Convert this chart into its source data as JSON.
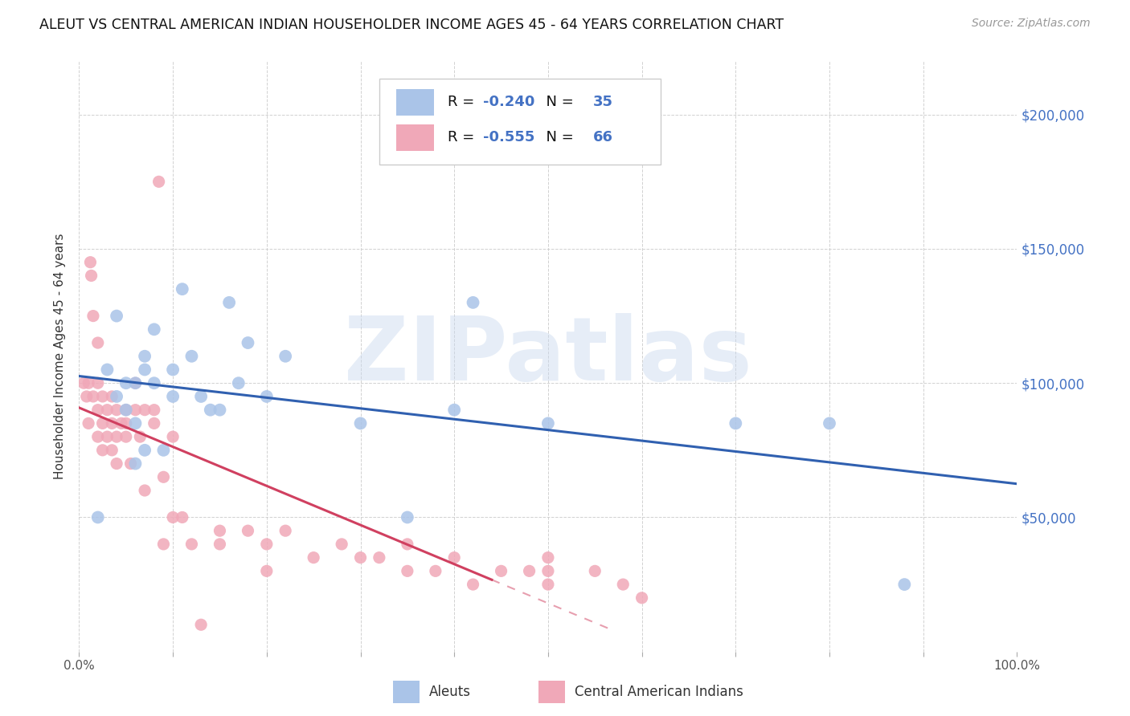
{
  "title": "ALEUT VS CENTRAL AMERICAN INDIAN HOUSEHOLDER INCOME AGES 45 - 64 YEARS CORRELATION CHART",
  "source": "Source: ZipAtlas.com",
  "ylabel": "Householder Income Ages 45 - 64 years",
  "y_tick_labels": [
    "$50,000",
    "$100,000",
    "$150,000",
    "$200,000"
  ],
  "y_tick_values": [
    50000,
    100000,
    150000,
    200000
  ],
  "ylim": [
    0,
    220000
  ],
  "xlim": [
    0.0,
    1.0
  ],
  "aleut_R": "-0.240",
  "aleut_N": "35",
  "cai_R": "-0.555",
  "cai_N": "66",
  "aleut_color": "#aac4e8",
  "cai_color": "#f0a8b8",
  "trend_aleut_color": "#3060b0",
  "trend_cai_color": "#d04060",
  "background_color": "#ffffff",
  "watermark": "ZIPatlas",
  "legend_text_color": "#111111",
  "legend_value_color": "#4472c4",
  "aleut_x": [
    0.02,
    0.03,
    0.04,
    0.04,
    0.05,
    0.05,
    0.06,
    0.06,
    0.06,
    0.07,
    0.07,
    0.07,
    0.08,
    0.08,
    0.09,
    0.1,
    0.1,
    0.11,
    0.12,
    0.13,
    0.14,
    0.15,
    0.16,
    0.17,
    0.18,
    0.2,
    0.22,
    0.3,
    0.35,
    0.4,
    0.42,
    0.5,
    0.7,
    0.8,
    0.88
  ],
  "aleut_y": [
    50000,
    105000,
    125000,
    95000,
    100000,
    90000,
    100000,
    85000,
    70000,
    105000,
    110000,
    75000,
    100000,
    120000,
    75000,
    95000,
    105000,
    135000,
    110000,
    95000,
    90000,
    90000,
    130000,
    100000,
    115000,
    95000,
    110000,
    85000,
    50000,
    90000,
    130000,
    85000,
    85000,
    85000,
    25000
  ],
  "cai_x": [
    0.005,
    0.008,
    0.01,
    0.01,
    0.012,
    0.013,
    0.015,
    0.015,
    0.02,
    0.02,
    0.02,
    0.02,
    0.025,
    0.025,
    0.025,
    0.03,
    0.03,
    0.035,
    0.035,
    0.035,
    0.04,
    0.04,
    0.04,
    0.045,
    0.05,
    0.05,
    0.05,
    0.055,
    0.06,
    0.06,
    0.065,
    0.07,
    0.07,
    0.08,
    0.08,
    0.085,
    0.09,
    0.09,
    0.1,
    0.1,
    0.11,
    0.12,
    0.13,
    0.15,
    0.15,
    0.18,
    0.2,
    0.2,
    0.22,
    0.25,
    0.28,
    0.3,
    0.32,
    0.35,
    0.35,
    0.38,
    0.4,
    0.42,
    0.45,
    0.48,
    0.5,
    0.5,
    0.5,
    0.55,
    0.58,
    0.6
  ],
  "cai_y": [
    100000,
    95000,
    100000,
    85000,
    145000,
    140000,
    125000,
    95000,
    115000,
    100000,
    90000,
    80000,
    95000,
    85000,
    75000,
    90000,
    80000,
    75000,
    95000,
    85000,
    90000,
    80000,
    70000,
    85000,
    90000,
    85000,
    80000,
    70000,
    100000,
    90000,
    80000,
    90000,
    60000,
    90000,
    85000,
    175000,
    65000,
    40000,
    80000,
    50000,
    50000,
    40000,
    10000,
    45000,
    40000,
    45000,
    40000,
    30000,
    45000,
    35000,
    40000,
    35000,
    35000,
    40000,
    30000,
    30000,
    35000,
    25000,
    30000,
    30000,
    35000,
    30000,
    25000,
    30000,
    25000,
    20000
  ],
  "trend_aleut_start_x": 0.0,
  "trend_aleut_end_x": 1.0,
  "trend_cai_solid_end": 0.44,
  "trend_cai_dash_end": 0.57
}
